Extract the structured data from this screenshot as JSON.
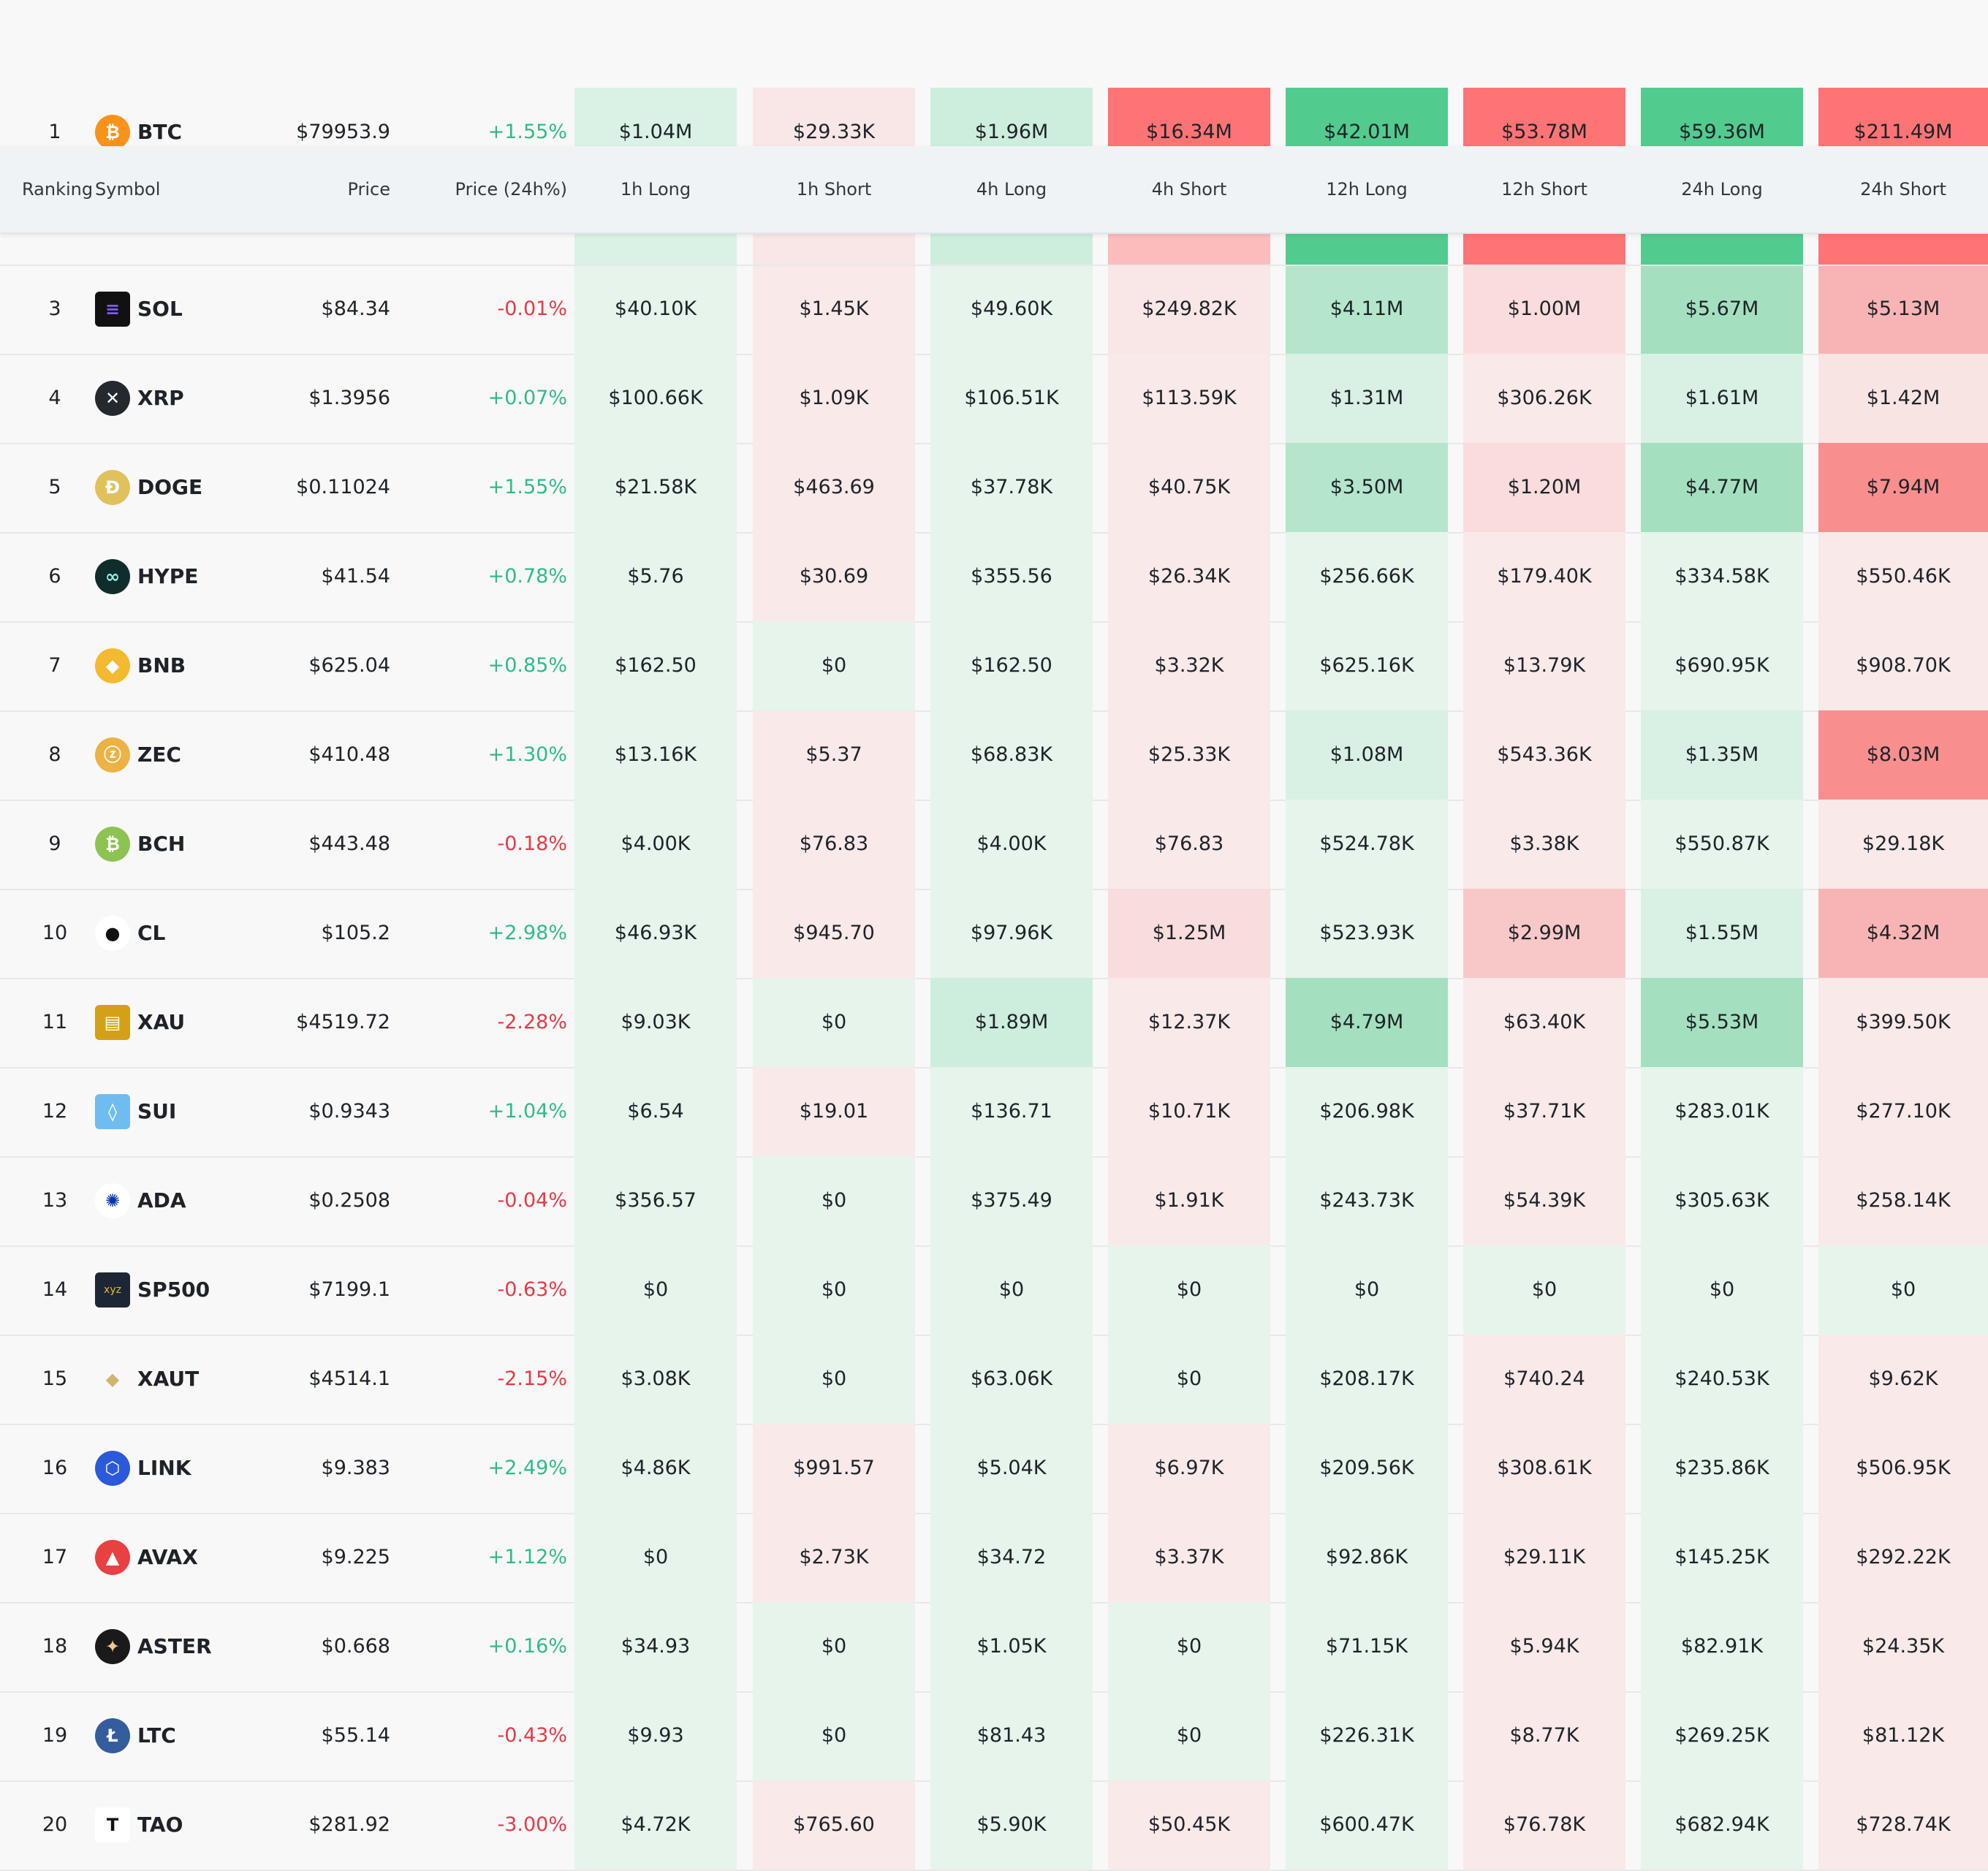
{
  "header": {
    "ranking": "Ranking",
    "symbol": "Symbol",
    "price": "Price",
    "price_change": "Price (24h%)",
    "cols": [
      "1h Long",
      "1h Short",
      "4h Long",
      "4h Short",
      "12h Long",
      "12h Short",
      "24h Long",
      "24h Short"
    ]
  },
  "rows": [
    {
      "rank": "1",
      "symbol": "BTC",
      "icon": "btc-icon",
      "price": "$79953.9",
      "change": "+1.55%",
      "v": [
        "$1.04M",
        "$29.33K",
        "$1.96M",
        "$16.34M",
        "$42.01M",
        "$53.78M",
        "$59.36M",
        "$211.49M"
      ]
    },
    {
      "rank": "3",
      "symbol": "SOL",
      "icon": "sol-icon",
      "price": "$84.34",
      "change": "-0.01%",
      "v": [
        "$40.10K",
        "$1.45K",
        "$49.60K",
        "$249.82K",
        "$4.11M",
        "$1.00M",
        "$5.67M",
        "$5.13M"
      ]
    },
    {
      "rank": "4",
      "symbol": "XRP",
      "icon": "xrp-icon",
      "price": "$1.3956",
      "change": "+0.07%",
      "v": [
        "$100.66K",
        "$1.09K",
        "$106.51K",
        "$113.59K",
        "$1.31M",
        "$306.26K",
        "$1.61M",
        "$1.42M"
      ]
    },
    {
      "rank": "5",
      "symbol": "DOGE",
      "icon": "doge-icon",
      "price": "$0.11024",
      "change": "+1.55%",
      "v": [
        "$21.58K",
        "$463.69",
        "$37.78K",
        "$40.75K",
        "$3.50M",
        "$1.20M",
        "$4.77M",
        "$7.94M"
      ]
    },
    {
      "rank": "6",
      "symbol": "HYPE",
      "icon": "hype-icon",
      "price": "$41.54",
      "change": "+0.78%",
      "v": [
        "$5.76",
        "$30.69",
        "$355.56",
        "$26.34K",
        "$256.66K",
        "$179.40K",
        "$334.58K",
        "$550.46K"
      ]
    },
    {
      "rank": "7",
      "symbol": "BNB",
      "icon": "bnb-icon",
      "price": "$625.04",
      "change": "+0.85%",
      "v": [
        "$162.50",
        "$0",
        "$162.50",
        "$3.32K",
        "$625.16K",
        "$13.79K",
        "$690.95K",
        "$908.70K"
      ]
    },
    {
      "rank": "8",
      "symbol": "ZEC",
      "icon": "zec-icon",
      "price": "$410.48",
      "change": "+1.30%",
      "v": [
        "$13.16K",
        "$5.37",
        "$68.83K",
        "$25.33K",
        "$1.08M",
        "$543.36K",
        "$1.35M",
        "$8.03M"
      ]
    },
    {
      "rank": "9",
      "symbol": "BCH",
      "icon": "bch-icon",
      "price": "$443.48",
      "change": "-0.18%",
      "v": [
        "$4.00K",
        "$76.83",
        "$4.00K",
        "$76.83",
        "$524.78K",
        "$3.38K",
        "$550.87K",
        "$29.18K"
      ]
    },
    {
      "rank": "10",
      "symbol": "CL",
      "icon": "oil-drop-icon",
      "price": "$105.2",
      "change": "+2.98%",
      "v": [
        "$46.93K",
        "$945.70",
        "$97.96K",
        "$1.25M",
        "$523.93K",
        "$2.99M",
        "$1.55M",
        "$4.32M"
      ]
    },
    {
      "rank": "11",
      "symbol": "XAU",
      "icon": "gold-bars-icon",
      "price": "$4519.72",
      "change": "-2.28%",
      "v": [
        "$9.03K",
        "$0",
        "$1.89M",
        "$12.37K",
        "$4.79M",
        "$63.40K",
        "$5.53M",
        "$399.50K"
      ]
    },
    {
      "rank": "12",
      "symbol": "SUI",
      "icon": "sui-icon",
      "price": "$0.9343",
      "change": "+1.04%",
      "v": [
        "$6.54",
        "$19.01",
        "$136.71",
        "$10.71K",
        "$206.98K",
        "$37.71K",
        "$283.01K",
        "$277.10K"
      ]
    },
    {
      "rank": "13",
      "symbol": "ADA",
      "icon": "ada-icon",
      "price": "$0.2508",
      "change": "-0.04%",
      "v": [
        "$356.57",
        "$0",
        "$375.49",
        "$1.91K",
        "$243.73K",
        "$54.39K",
        "$305.63K",
        "$258.14K"
      ]
    },
    {
      "rank": "14",
      "symbol": "SP500",
      "icon": "xyz-icon",
      "price": "$7199.1",
      "change": "-0.63%",
      "v": [
        "$0",
        "$0",
        "$0",
        "$0",
        "$0",
        "$0",
        "$0",
        "$0"
      ]
    },
    {
      "rank": "15",
      "symbol": "XAUT",
      "icon": "xaut-icon",
      "price": "$4514.1",
      "change": "-2.15%",
      "v": [
        "$3.08K",
        "$0",
        "$63.06K",
        "$0",
        "$208.17K",
        "$740.24",
        "$240.53K",
        "$9.62K"
      ]
    },
    {
      "rank": "16",
      "symbol": "LINK",
      "icon": "link-icon",
      "price": "$9.383",
      "change": "+2.49%",
      "v": [
        "$4.86K",
        "$991.57",
        "$5.04K",
        "$6.97K",
        "$209.56K",
        "$308.61K",
        "$235.86K",
        "$506.95K"
      ]
    },
    {
      "rank": "17",
      "symbol": "AVAX",
      "icon": "avax-icon",
      "price": "$9.225",
      "change": "+1.12%",
      "v": [
        "$0",
        "$2.73K",
        "$34.72",
        "$3.37K",
        "$92.86K",
        "$29.11K",
        "$145.25K",
        "$292.22K"
      ]
    },
    {
      "rank": "18",
      "symbol": "ASTER",
      "icon": "aster-icon",
      "price": "$0.668",
      "change": "+0.16%",
      "v": [
        "$34.93",
        "$0",
        "$1.05K",
        "$0",
        "$71.15K",
        "$5.94K",
        "$82.91K",
        "$24.35K"
      ]
    },
    {
      "rank": "19",
      "symbol": "LTC",
      "icon": "ltc-icon",
      "price": "$55.14",
      "change": "-0.43%",
      "v": [
        "$9.93",
        "$0",
        "$81.43",
        "$0",
        "$226.31K",
        "$8.77K",
        "$269.25K",
        "$81.12K"
      ]
    },
    {
      "rank": "20",
      "symbol": "TAO",
      "icon": "tao-icon",
      "price": "$281.92",
      "change": "-3.00%",
      "v": [
        "$4.72K",
        "$765.60",
        "$5.90K",
        "$50.45K",
        "$600.47K",
        "$76.78K",
        "$682.94K",
        "$728.74K"
      ]
    }
  ],
  "colors": {
    "up": "#2ebd85",
    "down": "#e63946",
    "green_strong": "#52cc8e",
    "red_strong": "#fe7474"
  }
}
